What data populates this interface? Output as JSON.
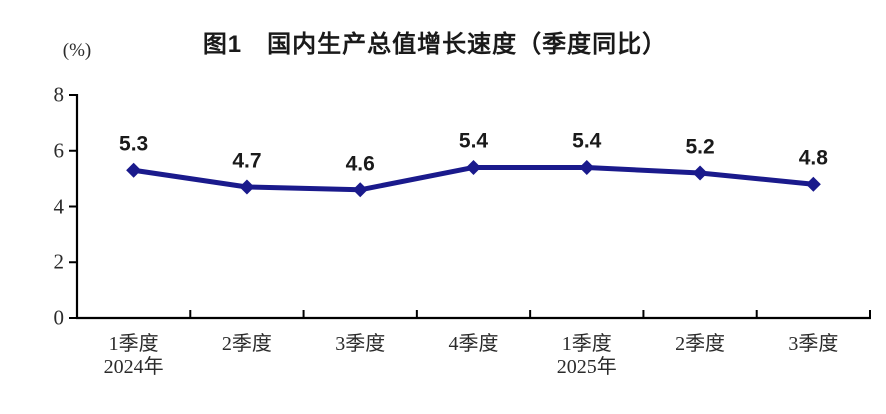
{
  "chart_data": {
    "type": "line",
    "title": "图1　国内生产总值增长速度（季度同比）",
    "ylabel": "(%)",
    "xlabel": "",
    "categories": [
      {
        "label": "1季度",
        "sublabel": "2024年"
      },
      {
        "label": "2季度",
        "sublabel": ""
      },
      {
        "label": "3季度",
        "sublabel": ""
      },
      {
        "label": "4季度",
        "sublabel": ""
      },
      {
        "label": "1季度",
        "sublabel": "2025年"
      },
      {
        "label": "2季度",
        "sublabel": ""
      },
      {
        "label": "3季度",
        "sublabel": ""
      }
    ],
    "series": [
      {
        "name": "国内生产总值增长速度",
        "values": [
          5.3,
          4.7,
          4.6,
          5.4,
          5.4,
          5.2,
          4.8
        ]
      }
    ],
    "data_labels": [
      "5.3",
      "4.7",
      "4.6",
      "5.4",
      "5.4",
      "5.2",
      "4.8"
    ],
    "ylim": [
      0,
      8
    ],
    "yticks": [
      0,
      2,
      4,
      6,
      8
    ],
    "grid": false,
    "legend": "none",
    "marker": "diamond",
    "colors": {
      "line": "#1A1A8C",
      "marker": "#1A1A8C",
      "axis": "#000000",
      "tick_text": "#2b2b2b",
      "data_label_text": "#1a1a1a",
      "background": "#ffffff"
    }
  }
}
